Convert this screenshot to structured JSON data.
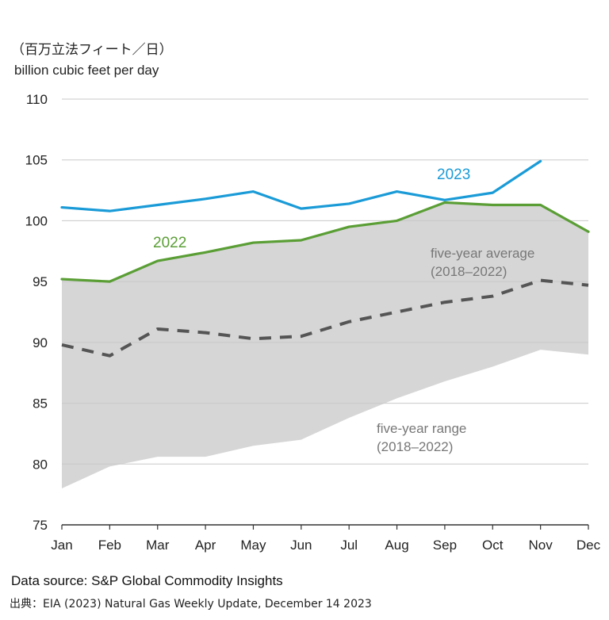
{
  "units": {
    "japanese": "（百万立法フィート／日）",
    "english": "billion cubic feet per day"
  },
  "chart_data": {
    "type": "line",
    "categories": [
      "Jan",
      "Feb",
      "Mar",
      "Apr",
      "May",
      "Jun",
      "Jul",
      "Aug",
      "Sep",
      "Oct",
      "Nov",
      "Dec"
    ],
    "ylim": [
      75,
      110
    ],
    "yticks": [
      "75",
      "80",
      "85",
      "90",
      "95",
      "100",
      "105",
      "110"
    ],
    "grid": true,
    "series": [
      {
        "name": "2023",
        "color": "#1a9bd7",
        "style": "solid",
        "values": [
          101.1,
          100.8,
          101.3,
          101.8,
          102.4,
          101.0,
          101.4,
          102.4,
          101.7,
          102.3,
          104.9,
          null
        ]
      },
      {
        "name": "2022",
        "color": "#5a9e35",
        "style": "solid",
        "values": [
          95.2,
          95.0,
          96.7,
          97.4,
          98.2,
          98.4,
          99.5,
          100.0,
          101.5,
          101.3,
          101.3,
          99.1
        ]
      },
      {
        "name": "five-year average (2018–2022)",
        "color": "#555555",
        "style": "dashed",
        "values": [
          89.8,
          88.9,
          91.1,
          90.8,
          90.3,
          90.5,
          91.7,
          92.5,
          93.3,
          93.8,
          95.1,
          94.7
        ]
      }
    ],
    "range": {
      "name": "five-year range (2018–2022)",
      "color": "#d6d6d6",
      "low": [
        78.0,
        79.8,
        80.6,
        80.6,
        81.5,
        82.0,
        83.8,
        85.4,
        86.8,
        88.0,
        89.4,
        89.0
      ],
      "high": [
        95.2,
        95.0,
        96.7,
        97.4,
        98.2,
        98.4,
        99.5,
        100.0,
        101.5,
        101.3,
        101.3,
        99.1
      ]
    },
    "labels": {
      "s2023": "2023",
      "s2022": "2022",
      "avg_line1": "five-year average",
      "avg_line2": "(2018–2022)",
      "range_line1": "five-year range",
      "range_line2": "(2018–2022)"
    }
  },
  "source": "Data source: S&P Global Commodity Insights",
  "citation": "出典：EIA (2023) Natural Gas Weekly Update, December 14 2023"
}
